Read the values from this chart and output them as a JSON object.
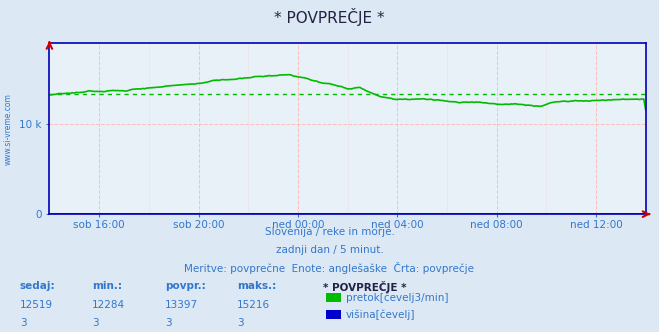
{
  "title": "* POVPREČJE *",
  "bg_color": "#dce8f4",
  "plot_bg_color": "#e8f0f8",
  "grid_color": "#ffbbbb",
  "axis_color": "#0000bb",
  "text_color": "#3377cc",
  "watermark": "www.si-vreme.com",
  "xlabel_lines": [
    "Slovenija / reke in morje.",
    "zadnji dan / 5 minut.",
    "Meritve: povprečne  Enote: anglešaške  Črta: povprečje"
  ],
  "x_ticks": [
    "sob 16:00",
    "sob 20:00",
    "ned 00:00",
    "ned 04:00",
    "ned 08:00",
    "ned 12:00"
  ],
  "y_ticks": [
    "0",
    "10 k"
  ],
  "y_tick_values": [
    0,
    10000
  ],
  "ylim": [
    0,
    19000
  ],
  "flow_color": "#00bb00",
  "height_color": "#0000cc",
  "avg_line_color": "#00bb00",
  "avg_line_value": 13397,
  "table_headers": [
    "sedaj:",
    "min.:",
    "povpr.:",
    "maks.:",
    "* POVPREČJE *"
  ],
  "table_row1": [
    "12519",
    "12284",
    "13397",
    "15216",
    ""
  ],
  "table_row2": [
    "3",
    "3",
    "3",
    "3",
    ""
  ],
  "legend_items": [
    {
      "label": "pretok[čevelj3/min]",
      "color": "#00bb00"
    },
    {
      "label": "višina[čevelj]",
      "color": "#0000cc"
    }
  ],
  "arrow_color": "#cc0000"
}
